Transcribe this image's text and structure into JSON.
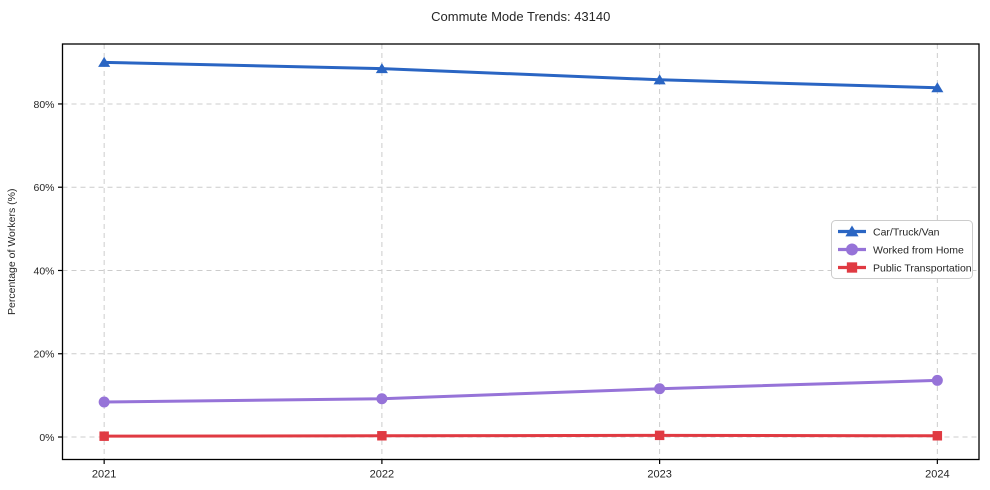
{
  "chart_data": {
    "type": "line",
    "title": "Commute Mode Trends: 43140",
    "xlabel": "",
    "ylabel": "Percentage of Workers (%)",
    "x": [
      2021,
      2022,
      2023,
      2024
    ],
    "x_tick_labels": [
      "2021",
      "2022",
      "2023",
      "2024"
    ],
    "y_ticks": [
      0,
      20,
      40,
      60,
      80
    ],
    "y_tick_labels": [
      "0%",
      "20%",
      "40%",
      "60%",
      "80%"
    ],
    "xlim": [
      2020.85,
      2024.15
    ],
    "ylim": [
      -5.4,
      94.4
    ],
    "grid": true,
    "grid_style": "dashed",
    "legend_position": "center-right",
    "series": [
      {
        "name": "Car/Truck/Van",
        "marker": "triangle",
        "color": "#2a65c3",
        "values": [
          90.0,
          88.5,
          85.8,
          83.9
        ]
      },
      {
        "name": "Worked from Home",
        "marker": "circle",
        "color": "#9673d8",
        "values": [
          8.4,
          9.2,
          11.6,
          13.6
        ]
      },
      {
        "name": "Public Transportation",
        "marker": "square",
        "color": "#e03a42",
        "values": [
          0.2,
          0.3,
          0.4,
          0.3
        ]
      }
    ],
    "colors": {
      "grid": "#cccccc",
      "axis": "#000000",
      "text": "#262626"
    }
  }
}
